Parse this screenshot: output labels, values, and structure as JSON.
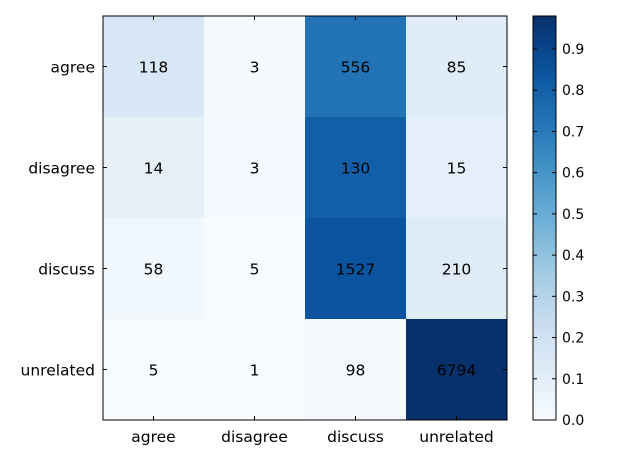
{
  "chart_data": {
    "type": "heatmap",
    "colormap": "Blues",
    "normalization": "row",
    "row_labels": [
      "agree",
      "disagree",
      "discuss",
      "unrelated"
    ],
    "col_labels": [
      "agree",
      "disagree",
      "discuss",
      "unrelated"
    ],
    "matrix": [
      [
        118,
        3,
        556,
        85
      ],
      [
        14,
        3,
        130,
        15
      ],
      [
        58,
        5,
        1527,
        210
      ],
      [
        5,
        1,
        98,
        6794
      ]
    ],
    "colorbar": {
      "range": [
        0.0,
        0.98
      ],
      "ticks": [
        "0.0",
        "0.1",
        "0.2",
        "0.3",
        "0.4",
        "0.5",
        "0.6",
        "0.7",
        "0.8",
        "0.9"
      ]
    },
    "title": "",
    "xlabel": "",
    "ylabel": ""
  }
}
